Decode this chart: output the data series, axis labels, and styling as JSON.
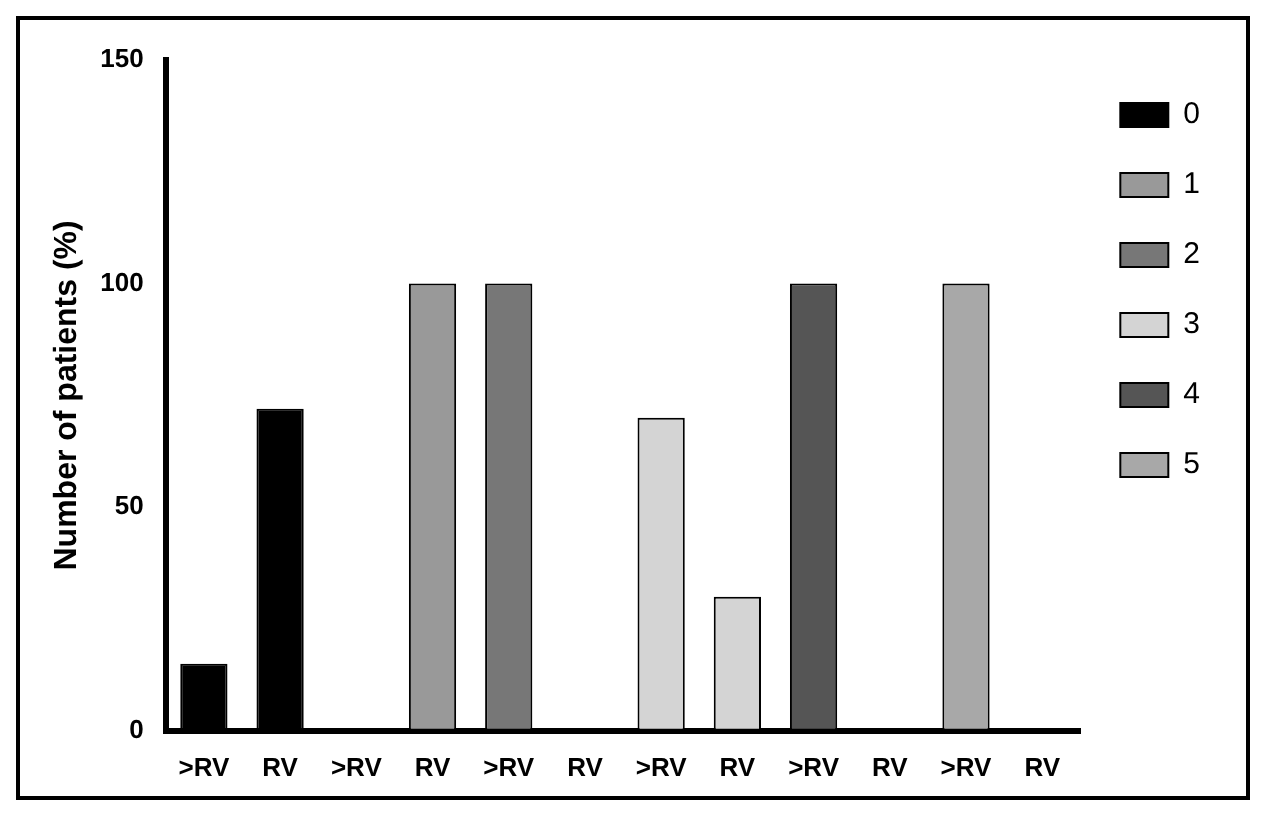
{
  "chart_data": {
    "type": "bar",
    "ylabel": "Number of patients (%)",
    "categories": [
      ">RV",
      "RV",
      ">RV",
      "RV",
      ">RV",
      "RV",
      ">RV",
      "RV",
      ">RV",
      "RV",
      ">RV",
      "RV"
    ],
    "series": [
      {
        "name": "0",
        "color": "#000000",
        "values": [
          15,
          72,
          null,
          null,
          null,
          null,
          null,
          null,
          null,
          null,
          null,
          null
        ]
      },
      {
        "name": "1",
        "color": "#999999",
        "values": [
          null,
          null,
          0,
          100,
          null,
          null,
          null,
          null,
          null,
          null,
          null,
          null
        ]
      },
      {
        "name": "2",
        "color": "#777777",
        "values": [
          null,
          null,
          null,
          null,
          100,
          0,
          null,
          null,
          null,
          null,
          null,
          null
        ]
      },
      {
        "name": "3",
        "color": "#d4d4d4",
        "values": [
          null,
          null,
          null,
          null,
          null,
          null,
          70,
          30,
          null,
          null,
          null,
          null
        ]
      },
      {
        "name": "4",
        "color": "#555555",
        "values": [
          null,
          null,
          null,
          null,
          null,
          null,
          null,
          null,
          100,
          0,
          null,
          null
        ]
      },
      {
        "name": "5",
        "color": "#a8a8a8",
        "values": [
          null,
          null,
          null,
          null,
          null,
          null,
          null,
          null,
          null,
          null,
          100,
          0
        ]
      }
    ],
    "ylim": [
      0,
      150
    ],
    "yticks": [
      0,
      50,
      100,
      150
    ],
    "grid": false,
    "legend": "right"
  }
}
